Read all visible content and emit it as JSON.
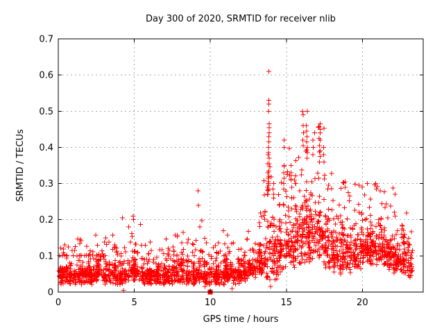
{
  "chart_data": {
    "type": "scatter",
    "title": "Day 300 of 2020, SRMTID for receiver nlib",
    "xlabel": "GPS time / hours",
    "ylabel": "SRMTID / TECUs",
    "xlim": [
      0,
      24
    ],
    "ylim": [
      0,
      0.7
    ],
    "xticks": [
      0,
      5,
      10,
      15,
      20
    ],
    "xtick_labels": [
      "0",
      "5",
      "10",
      "15",
      "20"
    ],
    "yticks": [
      0,
      0.1,
      0.2,
      0.3,
      0.4,
      0.5,
      0.6,
      0.7
    ],
    "ytick_labels": [
      "0",
      "0.1",
      "0.2",
      "0.3",
      "0.4",
      "0.5",
      "0.6",
      "0.7"
    ],
    "grid": true,
    "legend": null,
    "marker": "plus",
    "marker_size_px": 7,
    "colors": {
      "points": "#ff0000",
      "grid": "#a8a8a8",
      "axis": "#000000",
      "text": "#000000",
      "background": "#ffffff"
    },
    "seed": 1337,
    "note": "Dense scatter ~2500 pts; envelope_bins = [x_start, x_end, n_points, y_min, y_typical_top, y_max] per half-hour of GPS time, read from the plot.",
    "envelope_bins": [
      [
        0.0,
        0.5,
        50,
        0.02,
        0.1,
        0.13
      ],
      [
        0.5,
        1.0,
        50,
        0.02,
        0.1,
        0.125
      ],
      [
        1.0,
        1.5,
        50,
        0.02,
        0.1,
        0.15
      ],
      [
        1.5,
        2.0,
        50,
        0.02,
        0.09,
        0.13
      ],
      [
        2.0,
        2.5,
        50,
        0.02,
        0.1,
        0.16
      ],
      [
        2.5,
        3.0,
        50,
        0.03,
        0.1,
        0.13
      ],
      [
        3.0,
        3.5,
        50,
        0.02,
        0.1,
        0.15
      ],
      [
        3.5,
        4.0,
        50,
        0.02,
        0.1,
        0.16
      ],
      [
        4.0,
        4.5,
        50,
        0.02,
        0.1,
        0.21
      ],
      [
        4.5,
        5.0,
        50,
        0.03,
        0.11,
        0.2
      ],
      [
        5.0,
        5.5,
        50,
        0.03,
        0.11,
        0.19
      ],
      [
        5.5,
        6.0,
        50,
        0.02,
        0.09,
        0.13
      ],
      [
        6.0,
        6.5,
        50,
        0.02,
        0.09,
        0.14
      ],
      [
        6.5,
        7.0,
        50,
        0.02,
        0.09,
        0.12
      ],
      [
        7.0,
        7.5,
        50,
        0.02,
        0.1,
        0.15
      ],
      [
        7.5,
        8.0,
        50,
        0.02,
        0.1,
        0.16
      ],
      [
        8.0,
        8.5,
        50,
        0.02,
        0.11,
        0.17
      ],
      [
        8.5,
        9.0,
        50,
        0.02,
        0.1,
        0.15
      ],
      [
        9.0,
        9.5,
        48,
        0.02,
        0.11,
        0.2
      ],
      [
        9.5,
        10.0,
        48,
        0.01,
        0.1,
        0.15
      ],
      [
        10.0,
        10.5,
        48,
        0.02,
        0.09,
        0.13
      ],
      [
        10.5,
        11.0,
        50,
        0.02,
        0.1,
        0.17
      ],
      [
        11.0,
        11.5,
        50,
        0.03,
        0.1,
        0.16
      ],
      [
        11.5,
        12.0,
        50,
        0.02,
        0.09,
        0.14
      ],
      [
        12.0,
        12.5,
        50,
        0.03,
        0.1,
        0.15
      ],
      [
        12.5,
        13.0,
        50,
        0.04,
        0.11,
        0.17
      ],
      [
        13.0,
        13.5,
        52,
        0.05,
        0.13,
        0.22
      ],
      [
        13.5,
        14.0,
        55,
        0.03,
        0.22,
        0.35
      ],
      [
        14.0,
        14.5,
        55,
        0.03,
        0.2,
        0.32
      ],
      [
        14.5,
        15.0,
        55,
        0.05,
        0.24,
        0.35
      ],
      [
        15.0,
        15.5,
        58,
        0.06,
        0.26,
        0.4
      ],
      [
        15.5,
        16.0,
        58,
        0.06,
        0.28,
        0.38
      ],
      [
        16.0,
        16.5,
        60,
        0.08,
        0.3,
        0.5
      ],
      [
        16.5,
        17.0,
        58,
        0.08,
        0.3,
        0.44
      ],
      [
        17.0,
        17.5,
        58,
        0.08,
        0.3,
        0.47
      ],
      [
        17.5,
        18.0,
        55,
        0.06,
        0.26,
        0.33
      ],
      [
        18.0,
        18.5,
        52,
        0.05,
        0.2,
        0.26
      ],
      [
        18.5,
        19.0,
        52,
        0.05,
        0.21,
        0.31
      ],
      [
        19.0,
        19.5,
        52,
        0.05,
        0.2,
        0.28
      ],
      [
        19.5,
        20.0,
        52,
        0.06,
        0.21,
        0.3
      ],
      [
        20.0,
        20.5,
        52,
        0.07,
        0.2,
        0.27
      ],
      [
        20.5,
        21.0,
        52,
        0.07,
        0.21,
        0.3
      ],
      [
        21.0,
        21.5,
        52,
        0.07,
        0.2,
        0.28
      ],
      [
        21.5,
        22.0,
        52,
        0.06,
        0.18,
        0.25
      ],
      [
        22.0,
        22.5,
        55,
        0.05,
        0.17,
        0.29
      ],
      [
        22.5,
        23.0,
        50,
        0.05,
        0.15,
        0.22
      ],
      [
        23.0,
        23.3,
        30,
        0.04,
        0.13,
        0.17
      ]
    ],
    "feature_columns": [
      {
        "x": 13.85,
        "ys": [
          0.61,
          0.53,
          0.52,
          0.5,
          0.465,
          0.455,
          0.44,
          0.43,
          0.415,
          0.4,
          0.385,
          0.37,
          0.355,
          0.335,
          0.32,
          0.305,
          0.295,
          0.285
        ]
      },
      {
        "x": 13.78,
        "ys": [
          0.38,
          0.355,
          0.33,
          0.315,
          0.3,
          0.29,
          0.28,
          0.27
        ]
      },
      {
        "x": 14.15,
        "ys": [
          0.3,
          0.285,
          0.27,
          0.26
        ]
      },
      {
        "x": 14.85,
        "ys": [
          0.42,
          0.4,
          0.35,
          0.33,
          0.315,
          0.3,
          0.285
        ]
      },
      {
        "x": 15.3,
        "ys": [
          0.35,
          0.33,
          0.31
        ]
      },
      {
        "x": 16.1,
        "ys": [
          0.5,
          0.49,
          0.46,
          0.44,
          0.42,
          0.405
        ]
      },
      {
        "x": 16.35,
        "ys": [
          0.46,
          0.445,
          0.43,
          0.415,
          0.4,
          0.385,
          0.37
        ]
      },
      {
        "x": 16.75,
        "ys": [
          0.42,
          0.4,
          0.38
        ]
      },
      {
        "x": 17.2,
        "ys": [
          0.465,
          0.45,
          0.44,
          0.42,
          0.405,
          0.39,
          0.375,
          0.36
        ]
      },
      {
        "x": 17.45,
        "ys": [
          0.4,
          0.38,
          0.36
        ]
      },
      {
        "x": 9.2,
        "ys": [
          0.28,
          0.24
        ]
      },
      {
        "x": 4.6,
        "ys": [
          0.18
        ]
      },
      {
        "x": 4.95,
        "ys": [
          0.21
        ]
      },
      {
        "x": 18.85,
        "ys": [
          0.305,
          0.29
        ]
      },
      {
        "x": 19.8,
        "ys": [
          0.295
        ]
      },
      {
        "x": 20.35,
        "ys": [
          0.3
        ]
      },
      {
        "x": 20.9,
        "ys": [
          0.3,
          0.285
        ]
      },
      {
        "x": 21.2,
        "ys": [
          0.28
        ]
      },
      {
        "x": 22.15,
        "ys": [
          0.27
        ]
      },
      {
        "x": 4.3,
        "ys": [
          0.005
        ]
      },
      {
        "x": 11.45,
        "ys": [
          0.01
        ]
      },
      {
        "x": 13.95,
        "ys": [
          0.015
        ]
      }
    ],
    "special_points": [
      {
        "x": 10.0,
        "y": 0.0,
        "marker": "filled-square"
      }
    ]
  }
}
